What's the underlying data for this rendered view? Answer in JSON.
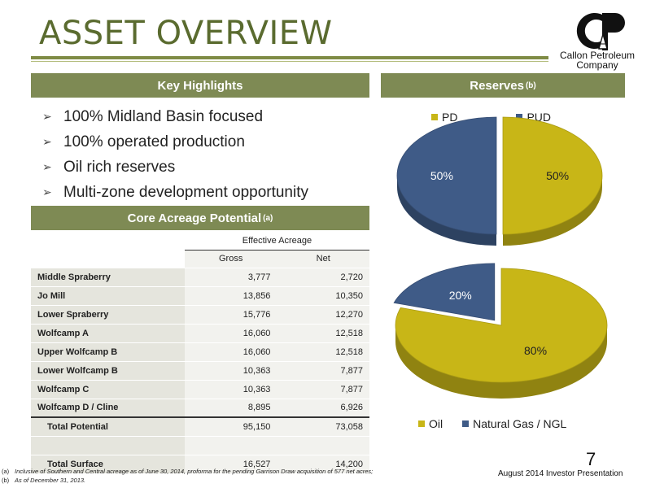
{
  "page": {
    "title": "ASSET OVERVIEW",
    "page_number": "7",
    "footer": "August 2014 Investor Presentation"
  },
  "logo": {
    "line1": "Callon Petroleum",
    "line2": "Company"
  },
  "key_highlights": {
    "heading": "Key Highlights",
    "items": [
      "100% Midland Basin focused",
      "100% operated production",
      "Oil rich reserves",
      "Multi-zone development opportunity"
    ]
  },
  "core_acreage": {
    "heading": "Core Acreage Potential",
    "heading_note": "(a)",
    "group_header": "Effective Acreage",
    "columns": [
      "Gross",
      "Net"
    ],
    "rows": [
      {
        "label": "Middle Spraberry",
        "gross": "3,777",
        "net": "2,720"
      },
      {
        "label": "Jo Mill",
        "gross": "13,856",
        "net": "10,350"
      },
      {
        "label": "Lower Spraberry",
        "gross": "15,776",
        "net": "12,270"
      },
      {
        "label": "Wolfcamp A",
        "gross": "16,060",
        "net": "12,518"
      },
      {
        "label": "Upper Wolfcamp B",
        "gross": "16,060",
        "net": "12,518"
      },
      {
        "label": "Lower Wolfcamp B",
        "gross": "10,363",
        "net": "7,877"
      },
      {
        "label": "Wolfcamp C",
        "gross": "10,363",
        "net": "7,877"
      },
      {
        "label": "Wolfcamp D / Cline",
        "gross": "8,895",
        "net": "6,926"
      }
    ],
    "total_potential": {
      "label": "Total Potential",
      "gross": "95,150",
      "net": "73,058"
    },
    "total_surface": {
      "label": "Total Surface",
      "gross": "16,527",
      "net": "14,200"
    }
  },
  "reserves": {
    "heading": "Reserves",
    "heading_note": "(b)"
  },
  "chart_data": [
    {
      "type": "pie",
      "categories": [
        "PD",
        "PUD"
      ],
      "values": [
        50,
        50
      ],
      "labels": [
        "50%",
        "50%"
      ],
      "colors": [
        "#c8b617",
        "#3f5b87"
      ],
      "legend": "top"
    },
    {
      "type": "pie",
      "categories": [
        "Oil",
        "Natural Gas / NGL"
      ],
      "values": [
        80,
        20
      ],
      "labels": [
        "80%",
        "20%"
      ],
      "colors": [
        "#c8b617",
        "#3f5b87"
      ],
      "legend": "bottom"
    }
  ],
  "footnotes": [
    {
      "key": "(a)",
      "text": "Inclusive of Southern and Central acreage as of June 30, 2014, proforma for the pending Garrison Draw acquisition of 577 net acres;"
    },
    {
      "key": "(b)",
      "text": "As of December 31, 2013."
    }
  ]
}
